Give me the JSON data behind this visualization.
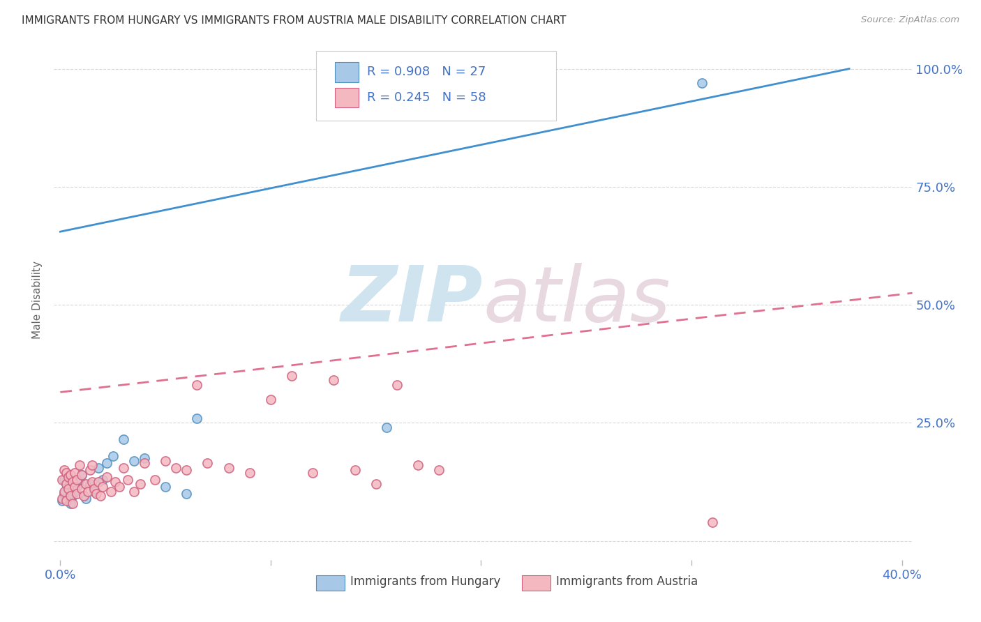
{
  "title": "IMMIGRANTS FROM HUNGARY VS IMMIGRANTS FROM AUSTRIA MALE DISABILITY CORRELATION CHART",
  "source": "Source: ZipAtlas.com",
  "ylabel": "Male Disability",
  "xlim": [
    -0.003,
    0.405
  ],
  "ylim": [
    -0.04,
    1.06
  ],
  "yticks": [
    0.0,
    0.25,
    0.5,
    0.75,
    1.0
  ],
  "xticks": [
    0.0,
    0.1,
    0.2,
    0.3,
    0.4
  ],
  "xtick_labels": [
    "0.0%",
    "",
    "",
    "",
    "40.0%"
  ],
  "ytick_labels_right": [
    "",
    "25.0%",
    "50.0%",
    "75.0%",
    "100.0%"
  ],
  "hungary_color": "#a8c8e8",
  "austria_color": "#f4b8c0",
  "hungary_line_color": "#4090d0",
  "austria_line_color": "#e07090",
  "hungary_edge_color": "#5090c0",
  "austria_edge_color": "#d06080",
  "tick_color": "#4472c4",
  "legend_text_color": "#4472c4",
  "background_color": "#ffffff",
  "grid_color": "#d8d8d8",
  "title_color": "#333333",
  "source_color": "#999999",
  "ylabel_color": "#666666",
  "watermark_zip_color": "#d0e4f0",
  "watermark_atlas_color": "#e8d8e0",
  "hungary_line_x": [
    0.0,
    0.375
  ],
  "hungary_line_y": [
    0.655,
    1.0
  ],
  "austria_line_x": [
    0.0,
    0.405
  ],
  "austria_line_y": [
    0.315,
    0.525
  ],
  "hungary_x": [
    0.001,
    0.002,
    0.002,
    0.003,
    0.003,
    0.004,
    0.005,
    0.006,
    0.007,
    0.008,
    0.009,
    0.01,
    0.012,
    0.014,
    0.016,
    0.018,
    0.02,
    0.022,
    0.025,
    0.03,
    0.035,
    0.04,
    0.05,
    0.06,
    0.065,
    0.155,
    0.305
  ],
  "hungary_y": [
    0.085,
    0.1,
    0.13,
    0.09,
    0.12,
    0.11,
    0.08,
    0.095,
    0.105,
    0.115,
    0.13,
    0.14,
    0.09,
    0.12,
    0.105,
    0.155,
    0.13,
    0.165,
    0.18,
    0.215,
    0.17,
    0.175,
    0.115,
    0.1,
    0.26,
    0.24,
    0.97
  ],
  "austria_x": [
    0.001,
    0.001,
    0.002,
    0.002,
    0.003,
    0.003,
    0.003,
    0.004,
    0.004,
    0.005,
    0.005,
    0.006,
    0.006,
    0.007,
    0.007,
    0.008,
    0.008,
    0.009,
    0.01,
    0.01,
    0.011,
    0.012,
    0.013,
    0.014,
    0.015,
    0.015,
    0.016,
    0.017,
    0.018,
    0.019,
    0.02,
    0.022,
    0.024,
    0.026,
    0.028,
    0.03,
    0.032,
    0.035,
    0.038,
    0.04,
    0.045,
    0.05,
    0.055,
    0.06,
    0.065,
    0.07,
    0.08,
    0.09,
    0.1,
    0.11,
    0.12,
    0.13,
    0.14,
    0.15,
    0.16,
    0.17,
    0.18,
    0.31
  ],
  "austria_y": [
    0.09,
    0.13,
    0.105,
    0.15,
    0.085,
    0.12,
    0.145,
    0.11,
    0.135,
    0.095,
    0.14,
    0.08,
    0.125,
    0.115,
    0.145,
    0.1,
    0.13,
    0.16,
    0.11,
    0.14,
    0.095,
    0.12,
    0.105,
    0.15,
    0.125,
    0.16,
    0.11,
    0.1,
    0.125,
    0.095,
    0.115,
    0.135,
    0.105,
    0.125,
    0.115,
    0.155,
    0.13,
    0.105,
    0.12,
    0.165,
    0.13,
    0.17,
    0.155,
    0.15,
    0.33,
    0.165,
    0.155,
    0.145,
    0.3,
    0.35,
    0.145,
    0.34,
    0.15,
    0.12,
    0.33,
    0.16,
    0.15,
    0.04
  ],
  "marker_size": 90,
  "line_width": 2.0
}
